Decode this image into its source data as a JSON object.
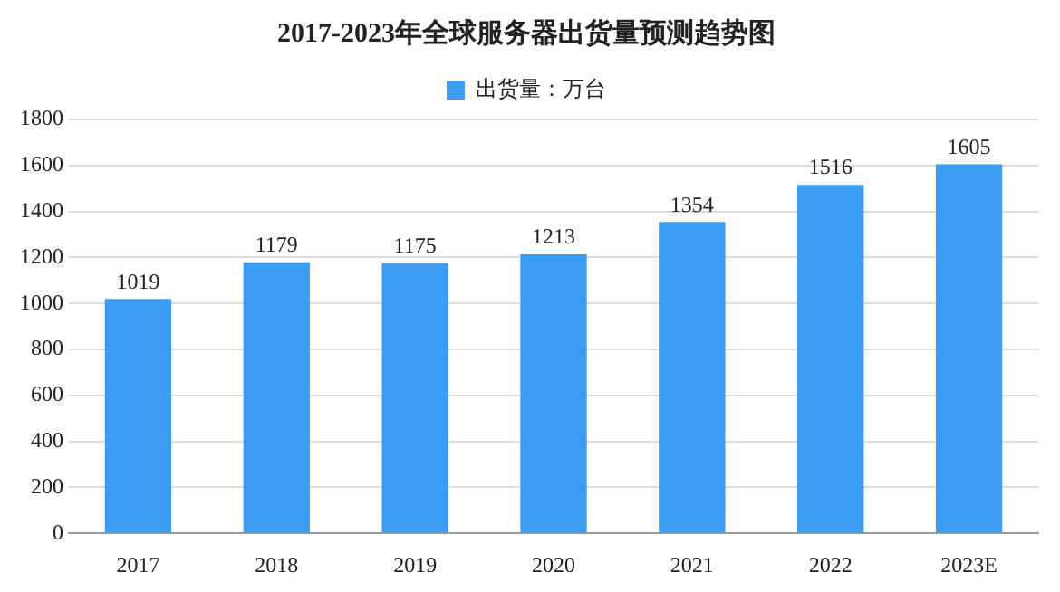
{
  "chart_data": {
    "type": "bar",
    "title": "2017-2023年全球服务器出货量预测趋势图",
    "categories": [
      "2017",
      "2018",
      "2019",
      "2020",
      "2021",
      "2022",
      "2023E"
    ],
    "series": [
      {
        "name": "出货量：万台",
        "color": "#3b9cf0",
        "values": [
          1019,
          1179,
          1175,
          1213,
          1354,
          1516,
          1605
        ]
      }
    ],
    "ylim": [
      0,
      1800
    ],
    "yticks": [
      0,
      200,
      400,
      600,
      800,
      1000,
      1200,
      1400,
      1600,
      1800
    ],
    "grid": "y",
    "legend": "top",
    "data_labels": true
  }
}
